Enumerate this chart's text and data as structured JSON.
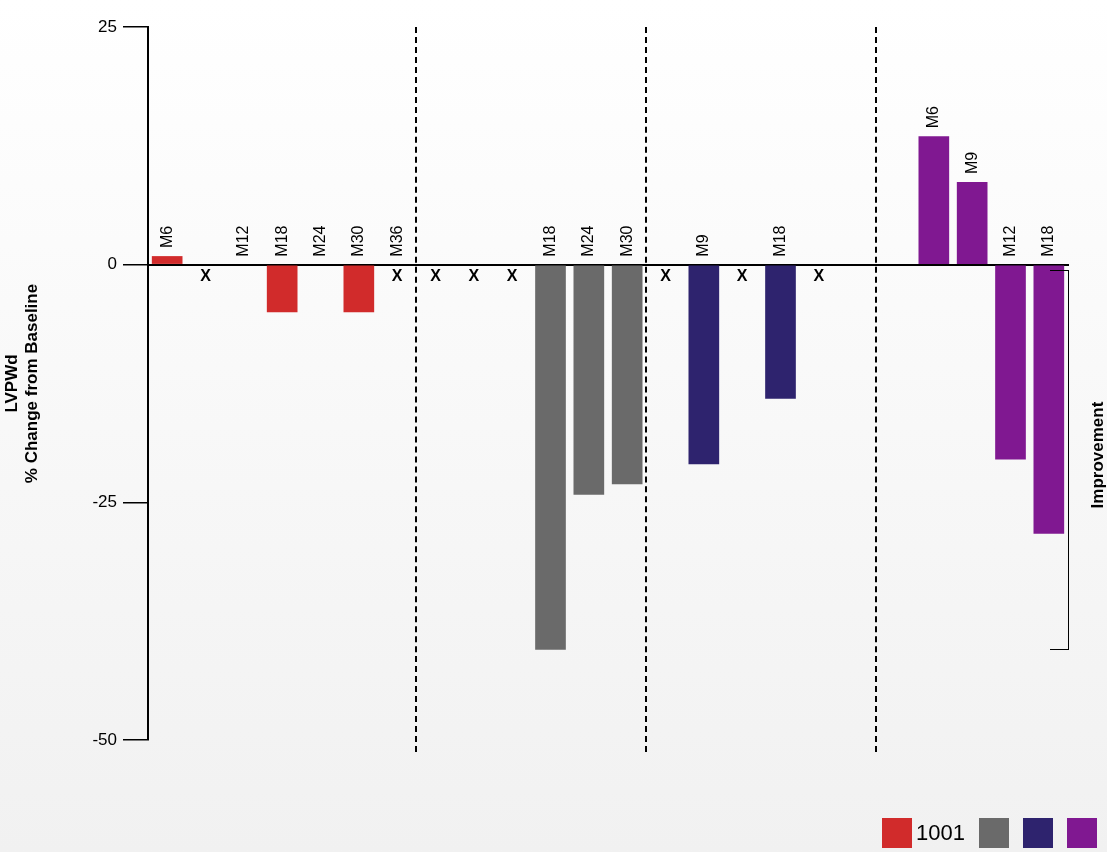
{
  "chart_data": {
    "type": "bar",
    "ylabel": "LVPWd\n% Change from Baseline",
    "categories": [
      "M6",
      null,
      "M12",
      "M18",
      "M24",
      "M30",
      "M36",
      null,
      null,
      null,
      "M18",
      "M24",
      "M30",
      null,
      "M9",
      null,
      "M18",
      null,
      null,
      null,
      "M6",
      "M9",
      "M12",
      "M18"
    ],
    "series": [
      {
        "name": "1001",
        "color": "#d12b2b",
        "values": [
          0.9,
          null,
          null,
          -5.0,
          null,
          -5.0,
          null,
          null,
          null,
          null,
          null,
          null,
          null,
          null,
          null,
          null,
          null,
          null,
          null,
          null,
          null,
          null,
          null,
          null
        ],
        "value_labels": [
          null,
          "X",
          null,
          null,
          null,
          null,
          "X",
          null,
          null,
          null,
          null,
          null,
          null,
          null,
          null,
          null,
          null,
          null,
          null,
          null,
          null,
          null,
          null,
          null
        ]
      },
      {
        "color": "#6a6a6a",
        "values": [
          null,
          null,
          null,
          null,
          null,
          null,
          null,
          null,
          null,
          null,
          -40.5,
          -24.2,
          -23.1,
          null,
          null,
          null,
          null,
          null,
          null,
          null,
          null,
          null,
          null,
          null
        ],
        "value_labels": [
          null,
          null,
          null,
          null,
          null,
          null,
          null,
          "X",
          "X",
          "X",
          null,
          null,
          null,
          null,
          null,
          null,
          null,
          null,
          null,
          null,
          null,
          null,
          null,
          null
        ]
      },
      {
        "color": "#2e236e",
        "values": [
          null,
          null,
          null,
          null,
          null,
          null,
          null,
          null,
          null,
          null,
          null,
          null,
          null,
          null,
          -21.0,
          null,
          -14.1,
          null,
          null,
          null,
          null,
          null,
          null,
          null
        ],
        "value_labels": [
          null,
          null,
          null,
          null,
          null,
          null,
          null,
          null,
          null,
          null,
          null,
          null,
          null,
          "X",
          null,
          "X",
          null,
          "X",
          null,
          null,
          null,
          null,
          null,
          null
        ]
      },
      {
        "color": "#801891",
        "values": [
          null,
          null,
          null,
          null,
          null,
          null,
          null,
          null,
          null,
          null,
          null,
          null,
          null,
          null,
          null,
          null,
          null,
          null,
          null,
          null,
          13.5,
          8.7,
          -20.5,
          -28.3
        ]
      }
    ],
    "ylim": [
      -50,
      25
    ],
    "yticks": [
      -50,
      -25,
      0,
      25
    ],
    "grid": false,
    "legend": "bottom right",
    "annotations": [
      "Improvement"
    ]
  }
}
